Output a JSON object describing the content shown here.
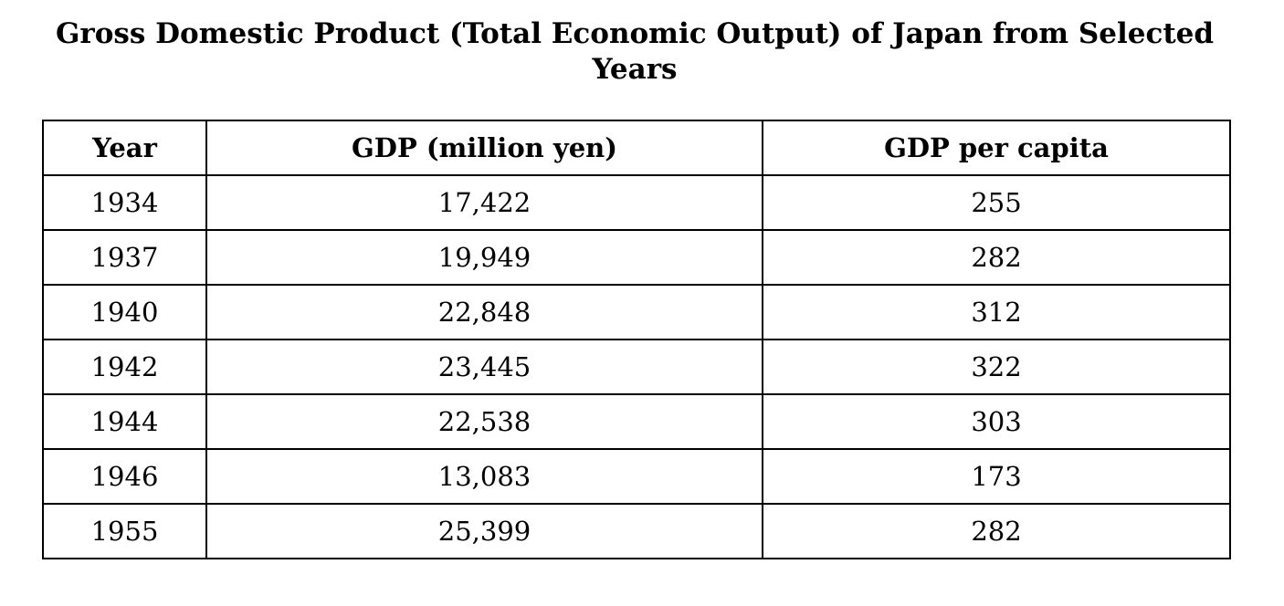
{
  "title": "Gross Domestic Product (Total Economic Output) of Japan from Selected Years",
  "table": {
    "headers": [
      "Year",
      "GDP (million yen)",
      "GDP per capita"
    ],
    "rows": [
      [
        "1934",
        "17,422",
        "255"
      ],
      [
        "1937",
        "19,949",
        "282"
      ],
      [
        "1940",
        "22,848",
        "312"
      ],
      [
        "1942",
        "23,445",
        "322"
      ],
      [
        "1944",
        "22,538",
        "303"
      ],
      [
        "1946",
        "13,083",
        "173"
      ],
      [
        "1955",
        "25,399",
        "282"
      ]
    ]
  },
  "chart_data": {
    "type": "table",
    "title": "Gross Domestic Product (Total Economic Output) of Japan from Selected Years",
    "columns": [
      "Year",
      "GDP (million yen)",
      "GDP per capita"
    ],
    "rows": [
      [
        1934,
        17422,
        255
      ],
      [
        1937,
        19949,
        282
      ],
      [
        1940,
        22848,
        312
      ],
      [
        1942,
        23445,
        322
      ],
      [
        1944,
        22538,
        303
      ],
      [
        1946,
        13083,
        173
      ],
      [
        1955,
        25399,
        282
      ]
    ]
  }
}
